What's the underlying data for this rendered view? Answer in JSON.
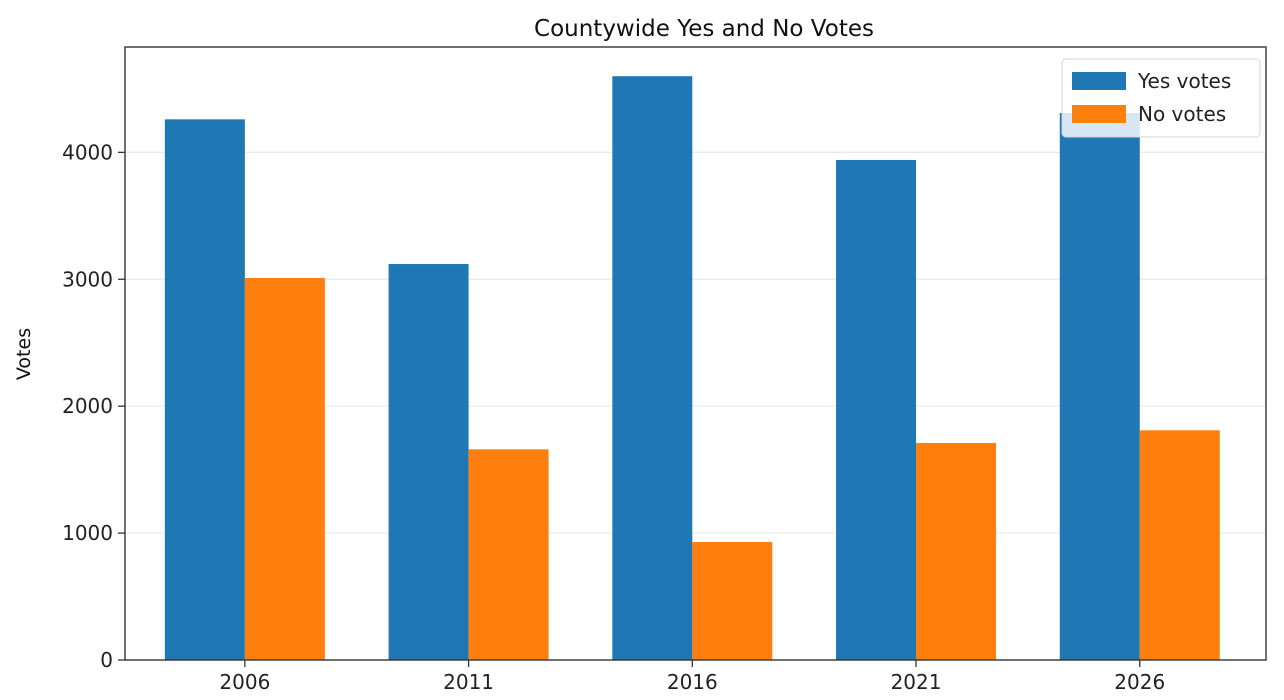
{
  "chart_data": {
    "type": "bar",
    "title": "Countywide Yes and No Votes",
    "xlabel": "",
    "ylabel": "Votes",
    "categories": [
      "2006",
      "2011",
      "2016",
      "2021",
      "2026"
    ],
    "series": [
      {
        "name": "Yes votes",
        "color": "#1f77b4",
        "values": [
          4260,
          3120,
          4600,
          3940,
          4310
        ]
      },
      {
        "name": "No votes",
        "color": "#ff7f0e",
        "values": [
          3010,
          1660,
          930,
          1710,
          1810
        ]
      }
    ],
    "ylim": [
      0,
      4830
    ],
    "yticks": [
      0,
      1000,
      2000,
      3000,
      4000
    ],
    "grid": "horizontal",
    "legend_position": "top-right"
  }
}
